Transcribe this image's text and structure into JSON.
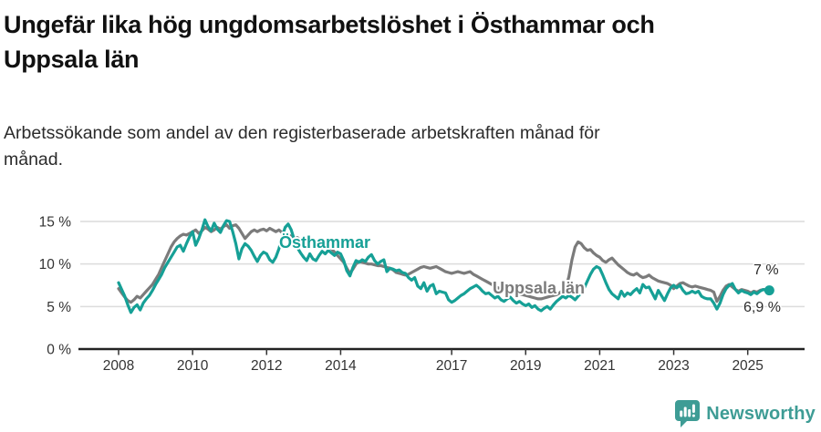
{
  "chart_data": {
    "type": "line",
    "title": "Ungefär lika hög ungdomsarbetslöshet i Östhammar och Uppsala län",
    "subtitle": "Arbetssökande som andel av den registerbaserade arbetskraften månad för månad.",
    "xlabel": "",
    "ylabel": "",
    "ylim": [
      0,
      16
    ],
    "grid": "horizontal",
    "legend_position": "inline-labels",
    "x_start": 2008.0,
    "x_step_years": 0.083333,
    "x_ticks": [
      2008,
      2010,
      2012,
      2014,
      2017,
      2019,
      2021,
      2023,
      2025
    ],
    "x_tick_labels": [
      "2008",
      "2010",
      "2012",
      "2014",
      "2017",
      "2019",
      "2021",
      "2023",
      "2025"
    ],
    "y_ticks": [
      0,
      5,
      10,
      15
    ],
    "y_tick_labels": [
      "0 %",
      "5 %",
      "10 %",
      "15 %"
    ],
    "series": [
      {
        "name": "Östhammar",
        "color": "#16a096",
        "end_dot": true,
        "end_label": "6,9 %",
        "values": [
          7.8,
          7.0,
          6.2,
          5.2,
          4.3,
          4.9,
          5.2,
          4.6,
          5.4,
          5.9,
          6.3,
          6.9,
          7.6,
          8.2,
          8.8,
          9.6,
          10.2,
          10.8,
          11.4,
          12.0,
          12.2,
          11.5,
          12.4,
          13.2,
          13.8,
          12.2,
          13.0,
          14.0,
          15.2,
          14.4,
          13.9,
          14.8,
          14.1,
          13.7,
          14.5,
          15.1,
          15.0,
          13.8,
          12.4,
          10.6,
          11.8,
          12.4,
          12.1,
          11.6,
          10.9,
          10.3,
          11.0,
          11.4,
          11.2,
          10.5,
          10.2,
          10.8,
          11.8,
          13.2,
          14.3,
          14.7,
          14.0,
          12.8,
          11.9,
          11.3,
          10.8,
          10.4,
          11.2,
          10.6,
          10.4,
          11.0,
          11.5,
          11.2,
          11.6,
          11.3,
          11.0,
          11.4,
          11.2,
          10.4,
          9.2,
          8.6,
          9.6,
          10.4,
          10.2,
          10.5,
          10.3,
          10.8,
          11.1,
          10.4,
          10.0,
          10.3,
          10.5,
          9.1,
          9.5,
          9.4,
          9.2,
          9.3,
          9.0,
          8.9,
          8.4,
          8.1,
          8.4,
          7.4,
          7.1,
          7.8,
          6.8,
          7.4,
          7.6,
          6.5,
          6.8,
          6.7,
          6.6,
          5.8,
          5.5,
          5.7,
          6.0,
          6.3,
          6.5,
          6.8,
          7.1,
          7.3,
          7.5,
          7.2,
          6.8,
          6.5,
          6.6,
          6.3,
          6.0,
          6.2,
          5.8,
          5.6,
          5.9,
          6.1,
          5.7,
          5.4,
          5.6,
          5.3,
          5.1,
          5.3,
          4.9,
          5.1,
          4.7,
          4.5,
          4.8,
          5.0,
          4.7,
          5.2,
          5.6,
          5.9,
          6.2,
          6.0,
          6.3,
          6.1,
          5.8,
          6.2,
          6.6,
          7.2,
          8.0,
          8.8,
          9.4,
          9.7,
          9.5,
          8.7,
          7.8,
          7.0,
          6.5,
          6.2,
          5.9,
          6.8,
          6.2,
          6.6,
          6.4,
          6.8,
          7.1,
          6.6,
          7.6,
          7.2,
          7.3,
          6.6,
          5.9,
          6.9,
          6.3,
          5.7,
          6.5,
          7.2,
          7.5,
          7.2,
          7.5,
          6.9,
          6.5,
          6.6,
          6.8,
          6.6,
          6.8,
          6.2,
          6.0,
          5.9,
          5.9,
          5.4,
          4.7,
          5.4,
          6.4,
          7.1,
          7.5,
          7.7,
          7.0,
          6.6,
          6.9,
          6.7,
          6.6,
          6.4,
          6.7,
          6.5,
          6.8,
          7.0,
          6.9,
          6.9
        ]
      },
      {
        "name": "Uppsala län",
        "color": "#7b7b7b",
        "end_dot": false,
        "end_label": "7 %",
        "values": [
          7.1,
          6.6,
          6.1,
          5.7,
          5.5,
          5.8,
          6.2,
          6.0,
          6.4,
          6.8,
          7.2,
          7.6,
          8.2,
          8.8,
          9.6,
          10.4,
          11.2,
          12.0,
          12.6,
          13.0,
          13.3,
          13.5,
          13.4,
          13.6,
          13.8,
          14.0,
          13.6,
          13.9,
          14.3,
          14.1,
          13.8,
          14.0,
          14.3,
          14.1,
          14.4,
          14.6,
          14.2,
          14.5,
          14.6,
          14.2,
          13.6,
          13.0,
          13.4,
          13.8,
          14.0,
          13.8,
          14.0,
          14.1,
          13.9,
          14.2,
          14.0,
          13.8,
          14.0,
          13.7,
          13.4,
          13.5,
          13.2,
          12.9,
          13.1,
          12.8,
          12.6,
          12.4,
          12.5,
          12.2,
          12.3,
          12.4,
          12.2,
          12.3,
          12.0,
          11.8,
          11.4,
          11.0,
          10.6,
          10.2,
          9.5,
          8.9,
          9.4,
          10.0,
          10.3,
          10.2,
          10.1,
          10.0,
          10.0,
          9.9,
          9.8,
          9.8,
          9.7,
          9.6,
          9.5,
          9.3,
          9.0,
          8.9,
          8.8,
          8.7,
          8.8,
          9.0,
          9.2,
          9.4,
          9.6,
          9.7,
          9.6,
          9.5,
          9.6,
          9.7,
          9.5,
          9.3,
          9.1,
          9.0,
          8.9,
          9.0,
          9.1,
          9.0,
          8.9,
          9.0,
          9.1,
          8.8,
          8.6,
          8.4,
          8.2,
          8.0,
          7.8,
          7.6,
          7.4,
          7.2,
          7.1,
          7.0,
          6.9,
          6.8,
          6.7,
          6.6,
          6.5,
          6.4,
          6.3,
          6.2,
          6.1,
          6.0,
          5.9,
          5.9,
          6.0,
          6.1,
          6.2,
          6.3,
          6.4,
          6.6,
          6.9,
          7.2,
          8.5,
          10.5,
          12.0,
          12.6,
          12.4,
          11.9,
          11.6,
          11.7,
          11.3,
          11.0,
          10.8,
          10.4,
          10.2,
          10.5,
          10.7,
          10.3,
          9.9,
          9.6,
          9.3,
          9.0,
          8.8,
          8.7,
          8.9,
          8.6,
          8.4,
          8.5,
          8.7,
          8.4,
          8.2,
          8.0,
          7.9,
          7.8,
          7.7,
          7.5,
          7.1,
          7.4,
          7.7,
          7.8,
          7.6,
          7.4,
          7.3,
          7.4,
          7.3,
          7.2,
          7.1,
          7.0,
          6.9,
          6.7,
          5.6,
          6.2,
          6.9,
          7.4,
          7.6,
          7.3,
          7.0,
          6.8,
          7.0,
          6.9,
          6.8,
          6.6,
          6.8,
          6.7,
          6.9,
          7.0,
          7.0,
          7.0
        ]
      }
    ],
    "annotations": [
      {
        "series": "Uppsala län",
        "text": "7 %"
      },
      {
        "series": "Östhammar",
        "text": "6,9 %"
      }
    ]
  },
  "header": {},
  "footer": {
    "brand": "Newsworthy"
  },
  "colors": {
    "osthammar_teal": "#16a096",
    "uppsala_gray": "#7b7b7b",
    "grid": "#dcdcdc",
    "baseline": "#222222",
    "axis_text": "#333333",
    "brand_teal": "#3e9c95"
  }
}
